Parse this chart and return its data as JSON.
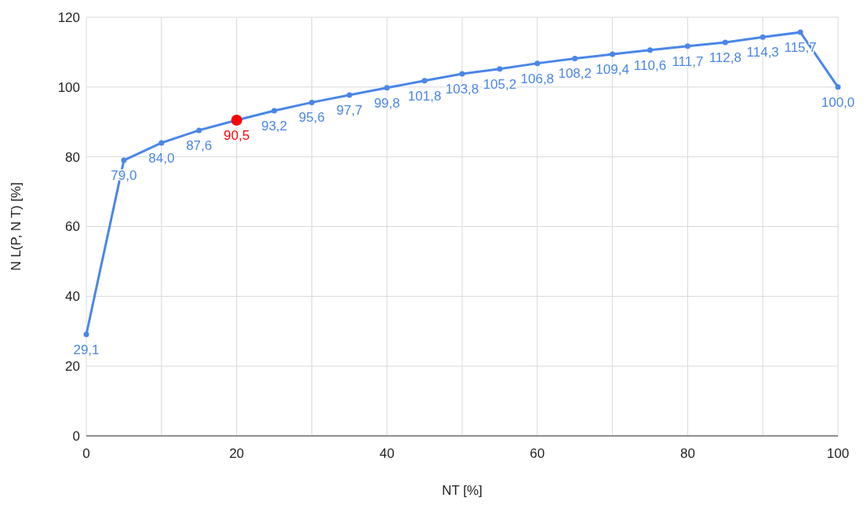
{
  "chart_data": {
    "type": "line",
    "xlabel": "NT [%]",
    "ylabel": "N L(P, N T) [%]",
    "xlim": [
      0,
      100
    ],
    "ylim": [
      0,
      120
    ],
    "xticks": [
      0,
      {
        "value": 10,
        "label": null
      },
      20,
      {
        "value": 30,
        "label": null
      },
      40,
      {
        "value": 50,
        "label": null
      },
      60,
      {
        "value": 70,
        "label": null
      },
      80,
      {
        "value": 90,
        "label": null
      },
      100
    ],
    "yticks": [
      0,
      20,
      40,
      60,
      80,
      100,
      120
    ],
    "grid": true,
    "marker": "circle",
    "line_style": "solid",
    "series": [
      {
        "color": "#4a86e8",
        "x": [
          0,
          5,
          10,
          15,
          20,
          25,
          30,
          35,
          40,
          45,
          50,
          55,
          60,
          65,
          70,
          75,
          80,
          85,
          90,
          95,
          100
        ],
        "values": [
          29.1,
          79.0,
          84.0,
          87.6,
          90.5,
          93.2,
          95.6,
          97.7,
          99.8,
          101.8,
          103.8,
          105.2,
          106.8,
          108.2,
          109.4,
          110.6,
          111.7,
          112.8,
          114.3,
          115.7,
          100.0
        ],
        "value_labels": [
          "29,1",
          "79,0",
          "84,0",
          "87,6",
          null,
          "93,2",
          "95,6",
          "97,7",
          "99,8",
          "101,8",
          "103,8",
          "105,2",
          "106,8",
          "108,2",
          "109,4",
          "110,6",
          "111,7",
          "112,8",
          "114,3",
          "115,7",
          "100,0"
        ]
      },
      {
        "type": "scatter",
        "color": "#ff0000",
        "x": [
          20
        ],
        "values": [
          90.5
        ],
        "value_labels": [
          "90,5"
        ]
      }
    ]
  }
}
